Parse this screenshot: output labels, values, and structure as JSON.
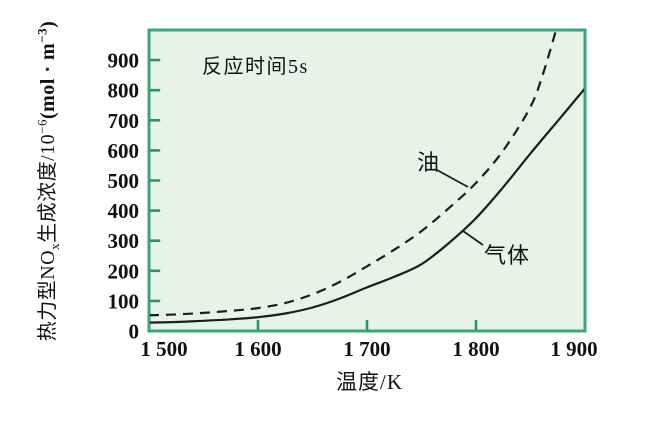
{
  "colors": {
    "plot_bg": "#e6f3e7",
    "border": "#3ba47a",
    "tick": "#2f9068",
    "curve": "#17201a",
    "text": "#111111",
    "page_bg": "#fefffe"
  },
  "chart_data": {
    "type": "line",
    "annotation": "反应时间5s",
    "xlabel": "温度/K",
    "ylabel": "热力型NOₓ生成浓度/10⁻⁶(mol·m⁻³)",
    "ylabel_parts": {
      "p1": "热力型NO",
      "sub1": "x",
      "p2": "生成浓度/10",
      "sup1": "−6",
      "p3": "(mol · m",
      "sup2": "−3",
      "p4": ")"
    },
    "xlim": [
      1500,
      1900
    ],
    "ylim": [
      0,
      1000
    ],
    "grid": false,
    "legend_position": "inline-curve-labels",
    "x_ticks": [
      {
        "value": 1500,
        "label": "1 500"
      },
      {
        "value": 1600,
        "label": "1 600"
      },
      {
        "value": 1700,
        "label": "1 700"
      },
      {
        "value": 1800,
        "label": "1 800"
      },
      {
        "value": 1900,
        "label": "1 900"
      }
    ],
    "y_ticks": [
      {
        "value": 0,
        "label": "0"
      },
      {
        "value": 100,
        "label": "100"
      },
      {
        "value": 200,
        "label": "200"
      },
      {
        "value": 300,
        "label": "300"
      },
      {
        "value": 400,
        "label": "400"
      },
      {
        "value": 500,
        "label": "500"
      },
      {
        "value": 600,
        "label": "600"
      },
      {
        "value": 700,
        "label": "700"
      },
      {
        "value": 800,
        "label": "800"
      },
      {
        "value": 900,
        "label": "900"
      }
    ],
    "series": [
      {
        "name": "油",
        "line_style": "dashed",
        "points": [
          [
            1500,
            52
          ],
          [
            1525,
            55
          ],
          [
            1550,
            60
          ],
          [
            1575,
            67
          ],
          [
            1600,
            76
          ],
          [
            1625,
            93
          ],
          [
            1650,
            122
          ],
          [
            1675,
            163
          ],
          [
            1700,
            215
          ],
          [
            1725,
            270
          ],
          [
            1750,
            332
          ],
          [
            1775,
            408
          ],
          [
            1800,
            492
          ],
          [
            1825,
            600
          ],
          [
            1850,
            745
          ],
          [
            1862,
            860
          ],
          [
            1875,
            1020
          ]
        ]
      },
      {
        "name": "气体",
        "line_style": "solid",
        "points": [
          [
            1500,
            28
          ],
          [
            1525,
            30
          ],
          [
            1550,
            34
          ],
          [
            1575,
            39
          ],
          [
            1600,
            46
          ],
          [
            1625,
            58
          ],
          [
            1650,
            78
          ],
          [
            1675,
            108
          ],
          [
            1700,
            145
          ],
          [
            1725,
            180
          ],
          [
            1750,
            222
          ],
          [
            1775,
            292
          ],
          [
            1800,
            375
          ],
          [
            1825,
            478
          ],
          [
            1850,
            590
          ],
          [
            1875,
            698
          ],
          [
            1900,
            806
          ]
        ]
      }
    ]
  }
}
